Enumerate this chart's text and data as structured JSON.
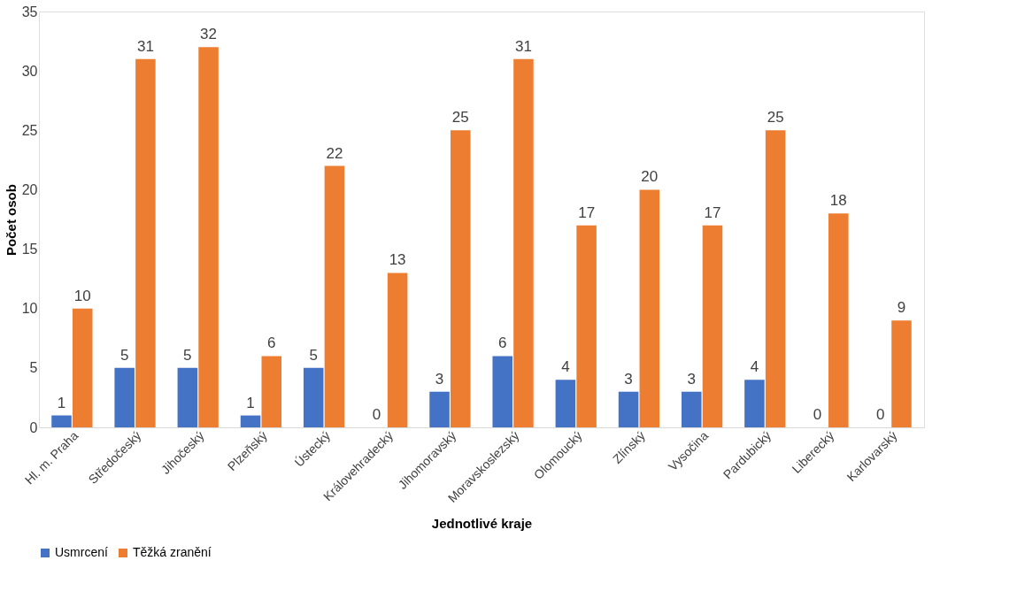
{
  "chart_data": {
    "type": "bar",
    "xlabel": "Jednotlivé kraje",
    "ylabel": "Počet osob",
    "categories": [
      "Hl. m. Praha",
      "Středočeský",
      "Jihočeský",
      "Plzeňský",
      "Ústecký",
      "Královehradecký",
      "Jihomoravský",
      "Moravskoslezský",
      "Olomoucký",
      "Zlínský",
      "Vysočina",
      "Pardubický",
      "Liberecký",
      "Karlovarský"
    ],
    "series": [
      {
        "name": "Usmrcení",
        "color": "#4472c4",
        "values": [
          1,
          5,
          5,
          1,
          5,
          0,
          3,
          6,
          4,
          3,
          3,
          4,
          0,
          0
        ]
      },
      {
        "name": "Těžká zranění",
        "color": "#ed7d31",
        "values": [
          10,
          31,
          32,
          6,
          22,
          13,
          25,
          31,
          17,
          20,
          17,
          25,
          18,
          9
        ]
      }
    ],
    "ylim": [
      0,
      35
    ],
    "yticks": [
      0,
      5,
      10,
      15,
      20,
      25,
      30,
      35
    ],
    "grid": false,
    "legend": "bottom",
    "data_labels": true
  }
}
